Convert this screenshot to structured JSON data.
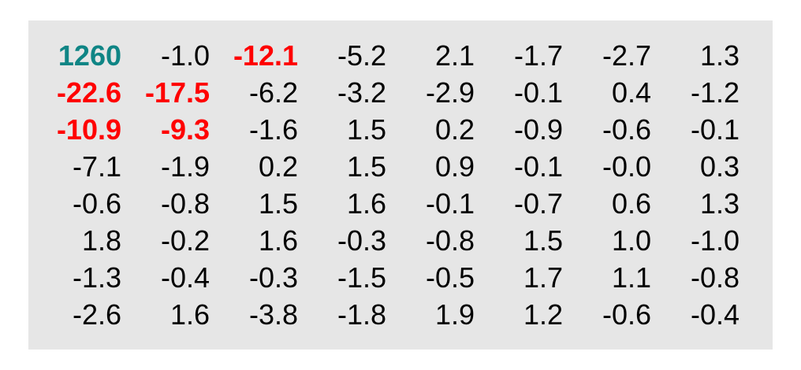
{
  "colors": {
    "panel_background": "#e6e6e6",
    "default_text": "#000000",
    "highlight_red": "#ff0000",
    "highlight_teal": "#0f8585"
  },
  "matrix": {
    "rows": [
      [
        "1260",
        "-1.0",
        "-12.1",
        "-5.2",
        "2.1",
        "-1.7",
        "-2.7",
        "1.3"
      ],
      [
        "-22.6",
        "-17.5",
        "-6.2",
        "-3.2",
        "-2.9",
        "-0.1",
        "0.4",
        "-1.2"
      ],
      [
        "-10.9",
        "-9.3",
        "-1.6",
        "1.5",
        "0.2",
        "-0.9",
        "-0.6",
        "-0.1"
      ],
      [
        "-7.1",
        "-1.9",
        "0.2",
        "1.5",
        "0.9",
        "-0.1",
        "-0.0",
        "0.3"
      ],
      [
        "-0.6",
        "-0.8",
        "1.5",
        "1.6",
        "-0.1",
        "-0.7",
        "0.6",
        "1.3"
      ],
      [
        "1.8",
        "-0.2",
        "1.6",
        "-0.3",
        "-0.8",
        "1.5",
        "1.0",
        "-1.0"
      ],
      [
        "-1.3",
        "-0.4",
        "-0.3",
        "-1.5",
        "-0.5",
        "1.7",
        "1.1",
        "-0.8"
      ],
      [
        "-2.6",
        "1.6",
        "-3.8",
        "-1.8",
        "1.9",
        "1.2",
        "-0.6",
        "-0.4"
      ]
    ],
    "highlights": [
      {
        "row": 0,
        "col": 0,
        "style": "teal"
      },
      {
        "row": 0,
        "col": 2,
        "style": "red"
      },
      {
        "row": 1,
        "col": 0,
        "style": "red"
      },
      {
        "row": 1,
        "col": 1,
        "style": "red"
      },
      {
        "row": 2,
        "col": 0,
        "style": "red"
      },
      {
        "row": 2,
        "col": 1,
        "style": "red"
      }
    ]
  }
}
